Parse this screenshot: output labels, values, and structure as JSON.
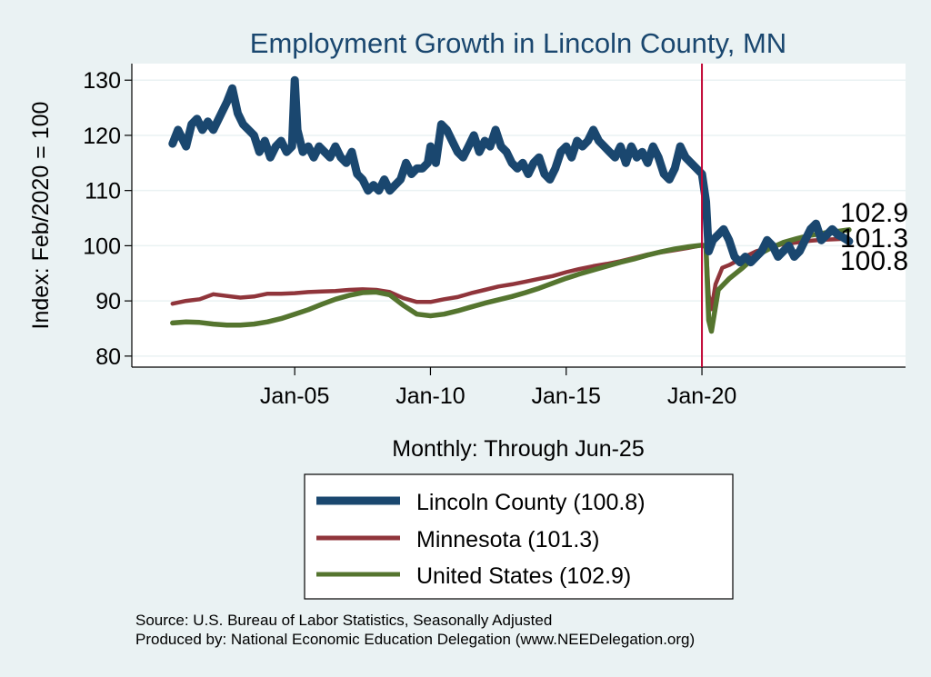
{
  "chart_data": {
    "type": "line",
    "title": "Employment Growth in Lincoln  County, MN",
    "xlabel": "Monthly: Through Jun-25",
    "ylabel": "Index: Feb/2020 = 100",
    "ylim": [
      78,
      133
    ],
    "yticks": [
      80,
      90,
      100,
      110,
      120,
      130
    ],
    "xlim": [
      1999.0,
      2027.5
    ],
    "xticks": [
      {
        "x": 2005.0,
        "label": "Jan-05"
      },
      {
        "x": 2010.0,
        "label": "Jan-10"
      },
      {
        "x": 2015.0,
        "label": "Jan-15"
      },
      {
        "x": 2020.0,
        "label": "Jan-20"
      }
    ],
    "reference_line_x": 2020.0,
    "grid": true,
    "legend_position": "bottom",
    "colors": {
      "lincoln": "#1a476f",
      "minnesota": "#90353b",
      "us": "#55752f",
      "refline": "#c10534",
      "title": "#1a476f",
      "outer_bg": "#eaf2f3",
      "plot_bg": "#ffffff"
    },
    "series": [
      {
        "key": "lincoln",
        "name": "Lincoln  County (100.8)",
        "end_label": "100.8",
        "points": [
          [
            2000.5,
            118.5
          ],
          [
            2000.7,
            121
          ],
          [
            2000.9,
            119
          ],
          [
            2001.0,
            118
          ],
          [
            2001.2,
            122
          ],
          [
            2001.4,
            123
          ],
          [
            2001.6,
            121
          ],
          [
            2001.8,
            122.5
          ],
          [
            2002.0,
            121
          ],
          [
            2002.3,
            124
          ],
          [
            2002.5,
            126
          ],
          [
            2002.7,
            128.5
          ],
          [
            2002.9,
            124
          ],
          [
            2003.1,
            122
          ],
          [
            2003.3,
            121
          ],
          [
            2003.5,
            120
          ],
          [
            2003.7,
            117
          ],
          [
            2003.9,
            119
          ],
          [
            2004.1,
            116
          ],
          [
            2004.3,
            118
          ],
          [
            2004.5,
            119
          ],
          [
            2004.7,
            117
          ],
          [
            2004.9,
            118
          ],
          [
            2005.0,
            130
          ],
          [
            2005.1,
            121
          ],
          [
            2005.3,
            117
          ],
          [
            2005.5,
            118
          ],
          [
            2005.7,
            116
          ],
          [
            2005.9,
            118
          ],
          [
            2006.1,
            117
          ],
          [
            2006.3,
            116
          ],
          [
            2006.5,
            118
          ],
          [
            2006.7,
            116
          ],
          [
            2006.9,
            115
          ],
          [
            2007.1,
            117
          ],
          [
            2007.3,
            113
          ],
          [
            2007.5,
            112
          ],
          [
            2007.7,
            110
          ],
          [
            2007.9,
            111
          ],
          [
            2008.1,
            110
          ],
          [
            2008.3,
            112
          ],
          [
            2008.5,
            110
          ],
          [
            2008.7,
            111
          ],
          [
            2008.9,
            112
          ],
          [
            2009.1,
            115
          ],
          [
            2009.3,
            113
          ],
          [
            2009.5,
            114
          ],
          [
            2009.7,
            114
          ],
          [
            2009.9,
            115
          ],
          [
            2010.0,
            118
          ],
          [
            2010.2,
            115
          ],
          [
            2010.4,
            122
          ],
          [
            2010.6,
            121
          ],
          [
            2010.8,
            119
          ],
          [
            2011.0,
            117
          ],
          [
            2011.2,
            116
          ],
          [
            2011.4,
            118
          ],
          [
            2011.6,
            120
          ],
          [
            2011.8,
            117
          ],
          [
            2012.0,
            119
          ],
          [
            2012.2,
            118
          ],
          [
            2012.4,
            121
          ],
          [
            2012.6,
            118
          ],
          [
            2012.8,
            117
          ],
          [
            2013.0,
            115
          ],
          [
            2013.2,
            114
          ],
          [
            2013.4,
            115
          ],
          [
            2013.6,
            113
          ],
          [
            2013.8,
            115
          ],
          [
            2014.0,
            116
          ],
          [
            2014.2,
            113
          ],
          [
            2014.4,
            112
          ],
          [
            2014.6,
            114
          ],
          [
            2014.8,
            117
          ],
          [
            2015.0,
            118
          ],
          [
            2015.2,
            116
          ],
          [
            2015.4,
            119
          ],
          [
            2015.6,
            118
          ],
          [
            2015.8,
            119
          ],
          [
            2016.0,
            121
          ],
          [
            2016.2,
            119
          ],
          [
            2016.4,
            118
          ],
          [
            2016.6,
            117
          ],
          [
            2016.8,
            116
          ],
          [
            2017.0,
            118
          ],
          [
            2017.2,
            115
          ],
          [
            2017.4,
            118
          ],
          [
            2017.6,
            116
          ],
          [
            2017.8,
            117
          ],
          [
            2018.0,
            115
          ],
          [
            2018.2,
            118
          ],
          [
            2018.4,
            116
          ],
          [
            2018.6,
            113
          ],
          [
            2018.8,
            112
          ],
          [
            2019.0,
            114
          ],
          [
            2019.2,
            118
          ],
          [
            2019.4,
            116
          ],
          [
            2019.6,
            115
          ],
          [
            2019.8,
            114
          ],
          [
            2020.0,
            113
          ],
          [
            2020.15,
            108
          ],
          [
            2020.25,
            99
          ],
          [
            2020.4,
            101
          ],
          [
            2020.6,
            102
          ],
          [
            2020.8,
            103
          ],
          [
            2021.0,
            101
          ],
          [
            2021.2,
            98
          ],
          [
            2021.4,
            97
          ],
          [
            2021.6,
            98
          ],
          [
            2021.8,
            97
          ],
          [
            2022.0,
            98
          ],
          [
            2022.2,
            99
          ],
          [
            2022.4,
            101
          ],
          [
            2022.6,
            100
          ],
          [
            2022.8,
            98
          ],
          [
            2023.0,
            99
          ],
          [
            2023.2,
            100
          ],
          [
            2023.4,
            98
          ],
          [
            2023.6,
            99
          ],
          [
            2023.8,
            101
          ],
          [
            2024.0,
            103
          ],
          [
            2024.2,
            104
          ],
          [
            2024.4,
            101
          ],
          [
            2024.6,
            102
          ],
          [
            2024.8,
            103
          ],
          [
            2025.0,
            102
          ],
          [
            2025.2,
            101.5
          ],
          [
            2025.42,
            100.8
          ]
        ]
      },
      {
        "key": "minnesota",
        "name": "Minnesota (101.3)",
        "end_label": "101.3",
        "points": [
          [
            2000.5,
            89.5
          ],
          [
            2001.0,
            90
          ],
          [
            2001.5,
            90.3
          ],
          [
            2002.0,
            91.2
          ],
          [
            2002.5,
            90.9
          ],
          [
            2003.0,
            90.6
          ],
          [
            2003.5,
            90.8
          ],
          [
            2004.0,
            91.3
          ],
          [
            2004.5,
            91.3
          ],
          [
            2005.0,
            91.4
          ],
          [
            2005.5,
            91.6
          ],
          [
            2006.0,
            91.7
          ],
          [
            2006.5,
            91.8
          ],
          [
            2007.0,
            92
          ],
          [
            2007.5,
            92.1
          ],
          [
            2008.0,
            92
          ],
          [
            2008.5,
            91.6
          ],
          [
            2009.0,
            90.5
          ],
          [
            2009.5,
            89.8
          ],
          [
            2010.0,
            89.8
          ],
          [
            2010.5,
            90.3
          ],
          [
            2011.0,
            90.7
          ],
          [
            2011.5,
            91.4
          ],
          [
            2012.0,
            92
          ],
          [
            2012.5,
            92.6
          ],
          [
            2013.0,
            93
          ],
          [
            2013.5,
            93.5
          ],
          [
            2014.0,
            94
          ],
          [
            2014.5,
            94.5
          ],
          [
            2015.0,
            95.2
          ],
          [
            2015.5,
            95.8
          ],
          [
            2016.0,
            96.3
          ],
          [
            2016.5,
            96.7
          ],
          [
            2017.0,
            97.2
          ],
          [
            2017.5,
            97.8
          ],
          [
            2018.0,
            98.4
          ],
          [
            2018.5,
            98.8
          ],
          [
            2019.0,
            99.2
          ],
          [
            2019.5,
            99.6
          ],
          [
            2020.0,
            100.1
          ],
          [
            2020.15,
            100.2
          ],
          [
            2020.25,
            91
          ],
          [
            2020.35,
            88.5
          ],
          [
            2020.5,
            93
          ],
          [
            2020.75,
            96
          ],
          [
            2021.0,
            96.5
          ],
          [
            2021.5,
            97.8
          ],
          [
            2022.0,
            99
          ],
          [
            2022.5,
            99.7
          ],
          [
            2023.0,
            100.3
          ],
          [
            2023.5,
            100.6
          ],
          [
            2024.0,
            100.9
          ],
          [
            2024.5,
            101.1
          ],
          [
            2025.0,
            101.2
          ],
          [
            2025.42,
            101.3
          ]
        ]
      },
      {
        "key": "us",
        "name": "United States (102.9)",
        "end_label": "102.9",
        "points": [
          [
            2000.5,
            86
          ],
          [
            2001.0,
            86.2
          ],
          [
            2001.5,
            86.1
          ],
          [
            2002.0,
            85.8
          ],
          [
            2002.5,
            85.6
          ],
          [
            2003.0,
            85.6
          ],
          [
            2003.5,
            85.8
          ],
          [
            2004.0,
            86.2
          ],
          [
            2004.5,
            86.8
          ],
          [
            2005.0,
            87.6
          ],
          [
            2005.5,
            88.4
          ],
          [
            2006.0,
            89.4
          ],
          [
            2006.5,
            90.3
          ],
          [
            2007.0,
            91
          ],
          [
            2007.5,
            91.5
          ],
          [
            2008.0,
            91.6
          ],
          [
            2008.5,
            91.1
          ],
          [
            2009.0,
            89.2
          ],
          [
            2009.5,
            87.6
          ],
          [
            2010.0,
            87.3
          ],
          [
            2010.5,
            87.6
          ],
          [
            2011.0,
            88.2
          ],
          [
            2011.5,
            88.9
          ],
          [
            2012.0,
            89.6
          ],
          [
            2012.5,
            90.2
          ],
          [
            2013.0,
            90.8
          ],
          [
            2013.5,
            91.5
          ],
          [
            2014.0,
            92.3
          ],
          [
            2014.5,
            93.2
          ],
          [
            2015.0,
            94.1
          ],
          [
            2015.5,
            94.9
          ],
          [
            2016.0,
            95.6
          ],
          [
            2016.5,
            96.3
          ],
          [
            2017.0,
            97
          ],
          [
            2017.5,
            97.6
          ],
          [
            2018.0,
            98.3
          ],
          [
            2018.5,
            98.9
          ],
          [
            2019.0,
            99.4
          ],
          [
            2019.5,
            99.8
          ],
          [
            2020.0,
            100.1
          ],
          [
            2020.15,
            99.8
          ],
          [
            2020.25,
            86.5
          ],
          [
            2020.35,
            84.5
          ],
          [
            2020.6,
            92
          ],
          [
            2021.0,
            94
          ],
          [
            2021.5,
            96
          ],
          [
            2022.0,
            98.2
          ],
          [
            2022.5,
            99.5
          ],
          [
            2023.0,
            100.6
          ],
          [
            2023.5,
            101.3
          ],
          [
            2024.0,
            101.9
          ],
          [
            2024.5,
            102.3
          ],
          [
            2025.0,
            102.6
          ],
          [
            2025.42,
            102.9
          ]
        ]
      }
    ]
  },
  "source_line": "Source: U.S. Bureau of Labor Statistics, Seasonally Adjusted",
  "produced_line": "Produced by: National Economic Education Delegation (www.NEEDelegation.org)"
}
